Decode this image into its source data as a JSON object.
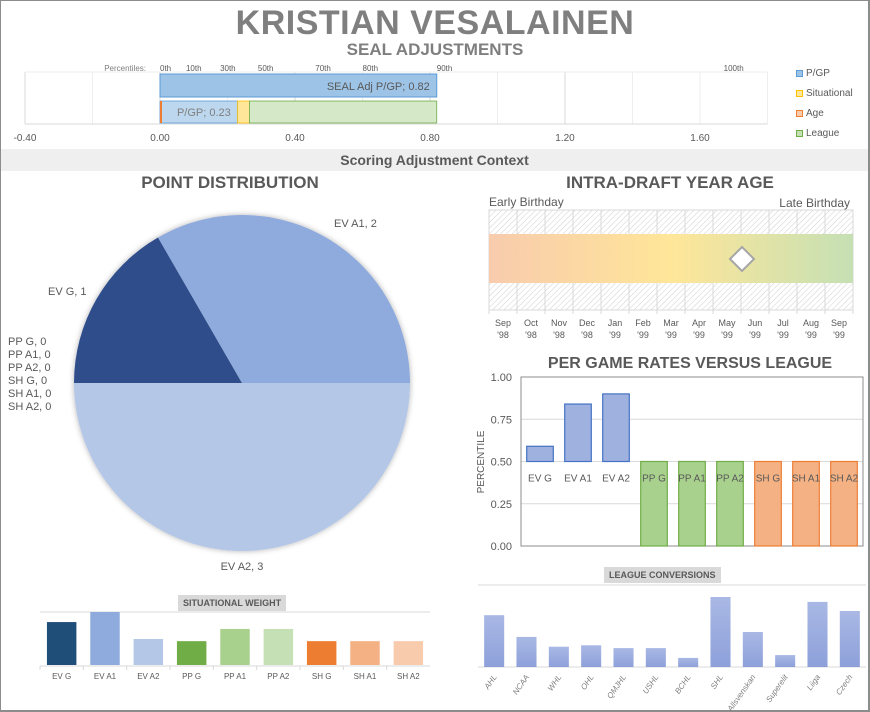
{
  "header": {
    "title": "KRISTIAN VESALAINEN",
    "subtitle": "SEAL ADJUSTMENTS"
  },
  "seal_chart": {
    "type": "bar",
    "orientation": "horizontal-stacked",
    "percentiles_label": "Percentiles:",
    "percentiles": [
      {
        "label": "0th",
        "value": 0
      },
      {
        "label": "10th",
        "value": 0.077
      },
      {
        "label": "30th",
        "value": 0.178
      },
      {
        "label": "50th",
        "value": 0.29
      },
      {
        "label": "70th",
        "value": 0.46
      },
      {
        "label": "80th",
        "value": 0.6
      },
      {
        "label": "90th",
        "value": 0.82
      },
      {
        "label": "100th",
        "value": 1.67
      }
    ],
    "xlim": [
      -0.4,
      1.8
    ],
    "ticks": [
      "-0.40",
      "0.00",
      "0.40",
      "0.80",
      "1.20",
      "1.60"
    ],
    "tick_values": [
      -0.4,
      0,
      0.4,
      0.8,
      1.2,
      1.6
    ],
    "top_bar": {
      "label": "SEAL Adj P/GP; 0.82",
      "value": 0.82,
      "color": "#9dc3e6"
    },
    "bottom_bar": [
      {
        "name": "P/GP",
        "value": 0.23,
        "label": "P/GP; 0.23",
        "color": "#bdd7ee"
      },
      {
        "name": "Situational",
        "value": 0.035,
        "color": "#ffe699"
      },
      {
        "name": "League",
        "value": 0.555,
        "color": "#d5e8c8"
      }
    ],
    "age_value": 0.005,
    "legend": [
      {
        "name": "P/GP",
        "color": "#9dc3e6",
        "border": "#5b9bd5"
      },
      {
        "name": "Situational",
        "color": "#ffe699",
        "border": "#ffc000"
      },
      {
        "name": "Age",
        "color": "#f8cbad",
        "border": "#ed7d31"
      },
      {
        "name": "League",
        "color": "#c5e0b4",
        "border": "#70ad47"
      }
    ]
  },
  "section_band": "Scoring Adjustment Context",
  "chart_data": [
    {
      "type": "pie",
      "title": "POINT DISTRIBUTION",
      "slices": [
        {
          "name": "EV G",
          "value": 1,
          "label": "EV G, 1",
          "color": "#2e4d8a"
        },
        {
          "name": "EV A1",
          "value": 2,
          "label": "EV A1, 2",
          "color": "#8faadc"
        },
        {
          "name": "EV A2",
          "value": 3,
          "label": "EV A2, 3",
          "color": "#b4c7e7"
        },
        {
          "name": "PP G",
          "value": 0,
          "label": "PP G, 0"
        },
        {
          "name": "PP A1",
          "value": 0,
          "label": "PP A1, 0"
        },
        {
          "name": "PP A2",
          "value": 0,
          "label": "PP A2, 0"
        },
        {
          "name": "SH G",
          "value": 0,
          "label": "SH G, 0"
        },
        {
          "name": "SH A1",
          "value": 0,
          "label": "SH A1, 0"
        },
        {
          "name": "SH A2",
          "value": 0,
          "label": "SH A2, 0"
        }
      ]
    },
    {
      "type": "scatter",
      "title": "INTRA-DRAFT YEAR AGE",
      "left_label": "Early Birthday",
      "right_label": "Late Birthday",
      "months": [
        [
          "Sep",
          "'98"
        ],
        [
          "Oct",
          "'98"
        ],
        [
          "Nov",
          "'98"
        ],
        [
          "Dec",
          "'98"
        ],
        [
          "Jan",
          "'99"
        ],
        [
          "Feb",
          "'99"
        ],
        [
          "Mar",
          "'99"
        ],
        [
          "Apr",
          "'99"
        ],
        [
          "May",
          "'99"
        ],
        [
          "Jun",
          "'99"
        ],
        [
          "Jul",
          "'99"
        ],
        [
          "Aug",
          "'99"
        ],
        [
          "Sep",
          "'99"
        ]
      ],
      "marker_date": "1999-05-31",
      "gradient": [
        "#f8cbad",
        "#ffe699",
        "#c5e0b4"
      ]
    },
    {
      "type": "bar",
      "title": "PER GAME RATES VERSUS  LEAGUE",
      "ylabel": "PERCENTILE",
      "ylim": [
        0,
        1
      ],
      "yticks": [
        "0.00",
        "0.25",
        "0.50",
        "0.75",
        "1.00"
      ],
      "baseline": 0.5,
      "categories": [
        "EV G",
        "EV A1",
        "EV A2",
        "PP G",
        "PP A1",
        "PP A2",
        "SH G",
        "SH A1",
        "SH A2"
      ],
      "values": [
        0.59,
        0.84,
        0.9,
        0,
        0,
        0,
        0,
        0,
        0
      ],
      "colors": [
        "#9fb1df",
        "#9fb1df",
        "#9fb1df",
        "#a9d18e",
        "#a9d18e",
        "#a9d18e",
        "#f4b183",
        "#f4b183",
        "#f4b183"
      ],
      "borders": [
        "#4472c4",
        "#4472c4",
        "#4472c4",
        "#70ad47",
        "#70ad47",
        "#70ad47",
        "#ed7d31",
        "#ed7d31",
        "#ed7d31"
      ]
    },
    {
      "type": "bar",
      "title": "SITUATIONAL  WEIGHT",
      "categories": [
        "EV G",
        "EV A1",
        "EV A2",
        "PP G",
        "PP A1",
        "PP A2",
        "SH G",
        "SH A1",
        "SH A2"
      ],
      "values": [
        0.81,
        1.0,
        0.49,
        0.45,
        0.68,
        0.68,
        0.45,
        0.45,
        0.45
      ],
      "colors": [
        "#1f4e79",
        "#8faadc",
        "#b4c7e7",
        "#70ad47",
        "#a9d18e",
        "#c5e0b4",
        "#ed7d31",
        "#f4b183",
        "#f8cbad"
      ]
    },
    {
      "type": "bar",
      "title": "LEAGUE CONVERSIONS",
      "categories": [
        "AHL",
        "NCAA",
        "WHL",
        "OHL",
        "QMJHL",
        "USHL",
        "BCHL",
        "SHL",
        "Allsvenskan",
        "Superelit",
        "Liiga",
        "Czech"
      ],
      "values": [
        0.74,
        0.43,
        0.29,
        0.31,
        0.27,
        0.27,
        0.13,
        1.0,
        0.5,
        0.17,
        0.93,
        0.8
      ],
      "color": "#8fa3dc"
    }
  ]
}
